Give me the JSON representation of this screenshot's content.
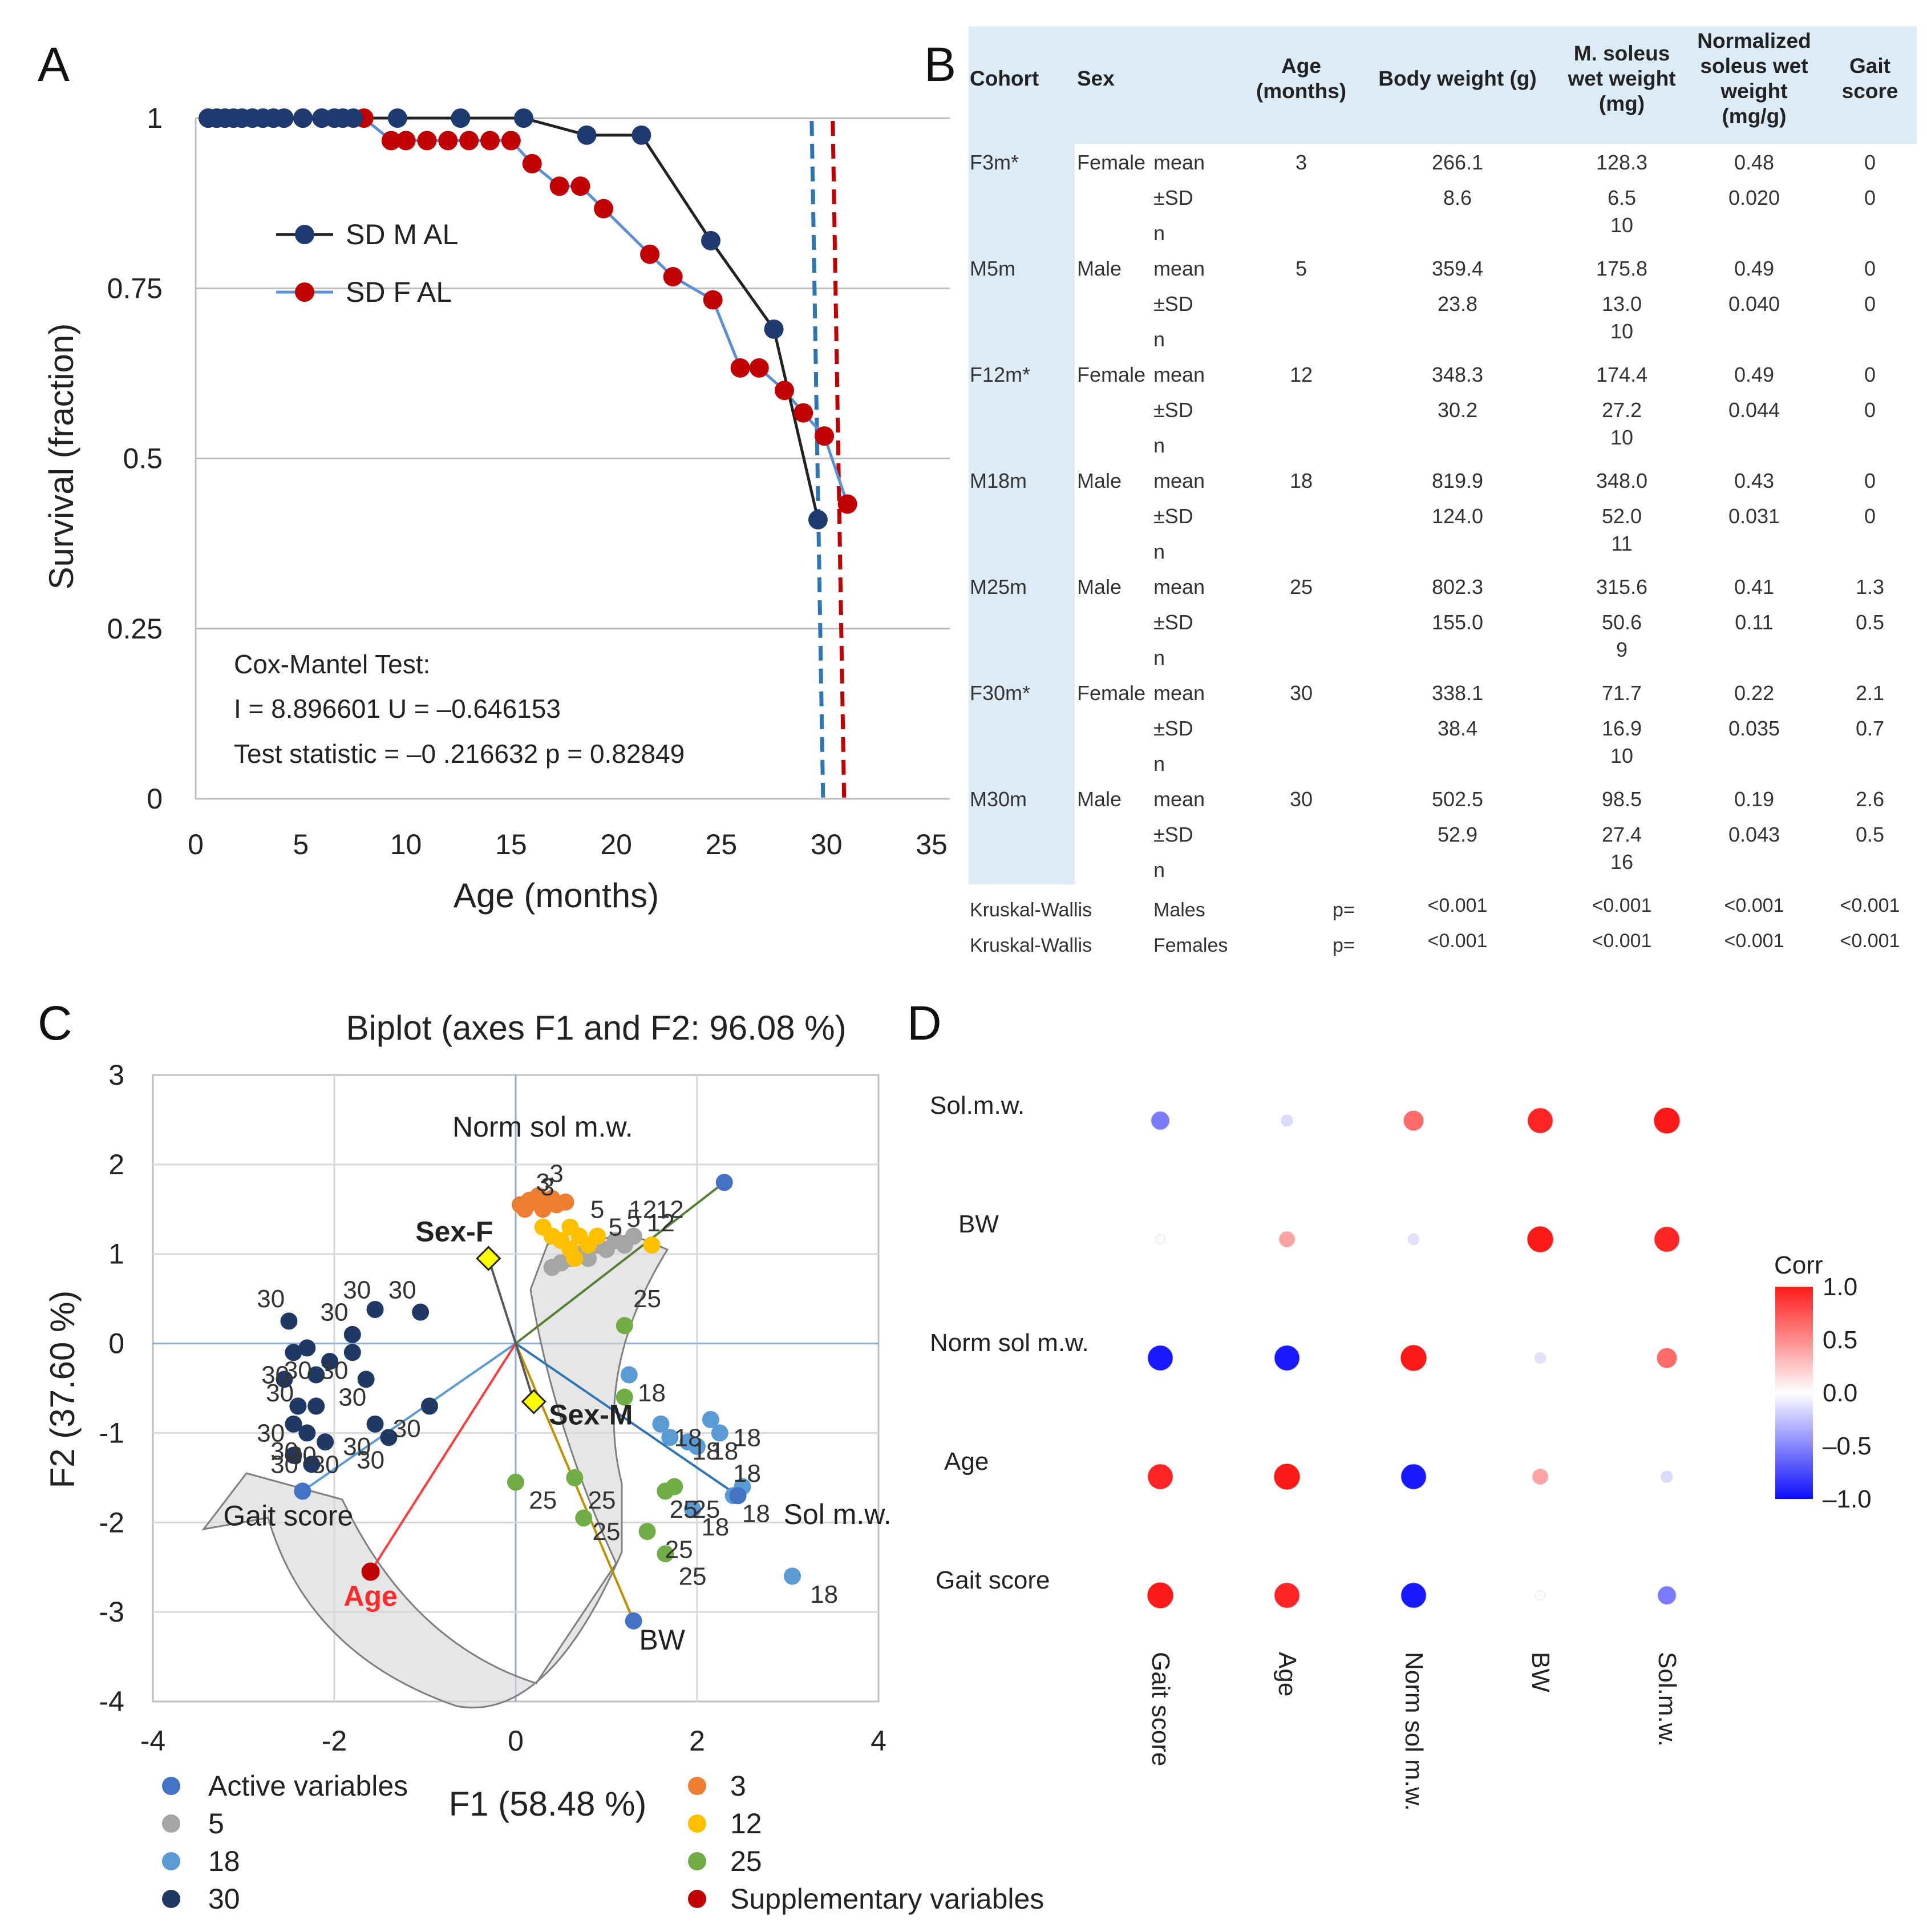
{
  "panel_labels": {
    "a": "A",
    "b": "B",
    "c": "C",
    "d": "D"
  },
  "chart_data": [
    {
      "panel": "A",
      "type": "line",
      "xlabel": "Age (months)",
      "ylabel": "Survival (fraction)",
      "xlim": [
        0,
        35
      ],
      "ylim": [
        0,
        1
      ],
      "xticks": [
        0,
        5,
        10,
        15,
        20,
        25,
        30,
        35
      ],
      "yticks": [
        0,
        0.25,
        0.5,
        0.75,
        1
      ],
      "ytick_labels": [
        "0",
        "0.25",
        "0.5",
        "0.75",
        "1"
      ],
      "series": [
        {
          "name": "SD M AL",
          "color": "#1f3a6e",
          "line_color": "#222222",
          "x": [
            0.6,
            1.0,
            1.4,
            1.8,
            2.2,
            2.7,
            3.2,
            3.7,
            4.2,
            5.1,
            6.0,
            6.6,
            7.0,
            7.5,
            9.6,
            12.6,
            15.6,
            18.6,
            21.2,
            24.5,
            27.5,
            29.6
          ],
          "y": [
            1,
            1,
            1,
            1,
            1,
            1,
            1,
            1,
            1,
            1,
            1,
            1,
            1,
            1,
            1,
            1,
            1,
            0.975,
            0.975,
            0.82,
            0.69,
            0.41
          ]
        },
        {
          "name": "SD F AL",
          "color": "#c00000",
          "line_color": "#5b8fd6",
          "x": [
            0.6,
            1.0,
            1.4,
            1.8,
            2.2,
            2.7,
            3.2,
            3.7,
            4.2,
            5.1,
            6.0,
            6.6,
            7.0,
            8.0,
            9.3,
            10.0,
            11.0,
            12.0,
            13.0,
            14.0,
            15.0,
            16.0,
            17.3,
            18.3,
            19.4,
            21.6,
            22.7,
            24.6,
            25.9,
            26.8,
            28.0,
            28.9,
            29.9,
            31.0
          ],
          "y": [
            1,
            1,
            1,
            1,
            1,
            1,
            1,
            1,
            1,
            1,
            1,
            1,
            1,
            1,
            0.967,
            0.967,
            0.967,
            0.967,
            0.967,
            0.967,
            0.967,
            0.933,
            0.9,
            0.9,
            0.867,
            0.8,
            0.767,
            0.733,
            0.633,
            0.633,
            0.6,
            0.567,
            0.533,
            0.433
          ]
        }
      ],
      "median_lines": [
        {
          "x": 29.3,
          "color": "#2e75b6"
        },
        {
          "x": 30.3,
          "color": "#c00000"
        }
      ],
      "annotation": [
        "Cox-Mantel Test:",
        "I = 8.896601 U = –0.646153",
        "Test statistic =  –0 .216632 p = 0.82849"
      ]
    },
    {
      "panel": "B",
      "type": "table",
      "headers": [
        "Cohort",
        "Sex",
        "Age (months)",
        "Body weight (g)",
        "M. soleus wet weight (mg)",
        "Normalized soleus wet weight (mg/g)",
        "Gait score"
      ],
      "header_lines": [
        [
          "Cohort"
        ],
        [
          "Sex"
        ],
        [
          "Age",
          "(months)"
        ],
        [
          "Body weight (g)"
        ],
        [
          "M. soleus",
          "wet weight",
          "(mg)"
        ],
        [
          "Normalized",
          "soleus wet",
          "weight",
          "(mg/g)"
        ],
        [
          "Gait",
          "score"
        ]
      ],
      "cohorts": [
        {
          "cohort": "F3m*",
          "sex": "Female",
          "age": "3",
          "mean": [
            "266.1",
            "128.3",
            "0.48",
            "0"
          ],
          "sd": [
            "8.6",
            "6.5",
            "0.020",
            "0"
          ],
          "n": "10"
        },
        {
          "cohort": "M5m",
          "sex": "Male",
          "age": "5",
          "mean": [
            "359.4",
            "175.8",
            "0.49",
            "0"
          ],
          "sd": [
            "23.8",
            "13.0",
            "0.040",
            "0"
          ],
          "n": "10"
        },
        {
          "cohort": "F12m*",
          "sex": "Female",
          "age": "12",
          "mean": [
            "348.3",
            "174.4",
            "0.49",
            "0"
          ],
          "sd": [
            "30.2",
            "27.2",
            "0.044",
            "0"
          ],
          "n": "10"
        },
        {
          "cohort": "M18m",
          "sex": "Male",
          "age": "18",
          "mean": [
            "819.9",
            "348.0",
            "0.43",
            "0"
          ],
          "sd": [
            "124.0",
            "52.0",
            "0.031",
            "0"
          ],
          "n": "11"
        },
        {
          "cohort": "M25m",
          "sex": "Male",
          "age": "25",
          "mean": [
            "802.3",
            "315.6",
            "0.41",
            "1.3"
          ],
          "sd": [
            "155.0",
            "50.6",
            "0.11",
            "0.5"
          ],
          "n": "9"
        },
        {
          "cohort": "F30m*",
          "sex": "Female",
          "age": "30",
          "mean": [
            "338.1",
            "71.7",
            "0.22",
            "2.1"
          ],
          "sd": [
            "38.4",
            "16.9",
            "0.035",
            "0.7"
          ],
          "n": "10"
        },
        {
          "cohort": "M30m",
          "sex": "Male",
          "age": "30",
          "mean": [
            "502.5",
            "98.5",
            "0.19",
            "2.6"
          ],
          "sd": [
            "52.9",
            "27.4",
            "0.043",
            "0.5"
          ],
          "n": "16"
        }
      ],
      "stat_labels": {
        "mean": "mean",
        "sd": "±SD",
        "n": "n"
      },
      "kruskal": [
        {
          "test": "Kruskal-Wallis",
          "group": "Males",
          "p": "p=",
          "values": [
            "<0.001",
            "<0.001",
            "<0.001",
            "<0.001"
          ]
        },
        {
          "test": "Kruskal-Wallis",
          "group": "Females",
          "p": "p=",
          "values": [
            "<0.001",
            "<0.001",
            "<0.001",
            "<0.001"
          ]
        }
      ]
    },
    {
      "panel": "C",
      "type": "scatter",
      "title": "Biplot (axes F1 and F2: 96.08 %)",
      "xlabel": "F1 (58.48 %)",
      "ylabel": "F2 (37.60 %)",
      "xlim": [
        -4,
        4
      ],
      "ylim": [
        -4,
        3
      ],
      "xticks": [
        -4,
        -2,
        0,
        2,
        4
      ],
      "yticks": [
        -4,
        -3,
        -2,
        -1,
        0,
        1,
        2,
        3
      ],
      "groups": [
        {
          "name": "3",
          "color": "#ed7d31",
          "label": "3",
          "points": [
            [
              0.05,
              1.55
            ],
            [
              0.15,
              1.6
            ],
            [
              0.25,
              1.65
            ],
            [
              0.35,
              1.6
            ],
            [
              0.45,
              1.55
            ],
            [
              0.3,
              1.5
            ],
            [
              0.2,
              1.58
            ],
            [
              0.4,
              1.62
            ],
            [
              0.55,
              1.58
            ],
            [
              0.1,
              1.5
            ]
          ],
          "label_points": [
            [
              0.3,
              1.8
            ],
            [
              0.45,
              1.9
            ],
            [
              0.35,
              1.75
            ]
          ]
        },
        {
          "name": "5",
          "color": "#a5a5a5",
          "label": "5",
          "points": [
            [
              0.4,
              0.85
            ],
            [
              0.5,
              0.9
            ],
            [
              0.6,
              0.95
            ],
            [
              0.7,
              1.0
            ],
            [
              0.9,
              1.1
            ],
            [
              1.0,
              1.05
            ],
            [
              1.1,
              1.15
            ],
            [
              1.3,
              1.2
            ],
            [
              0.8,
              0.95
            ],
            [
              1.2,
              1.1
            ]
          ],
          "label_points": [
            [
              0.9,
              1.5
            ],
            [
              1.1,
              1.3
            ],
            [
              1.3,
              1.4
            ]
          ]
        },
        {
          "name": "12",
          "color": "#ffc000",
          "label": "12",
          "points": [
            [
              0.3,
              1.3
            ],
            [
              0.4,
              1.2
            ],
            [
              0.5,
              1.15
            ],
            [
              0.6,
              1.3
            ],
            [
              0.7,
              1.2
            ],
            [
              0.8,
              1.1
            ],
            [
              0.6,
              1.05
            ],
            [
              0.9,
              1.2
            ],
            [
              1.5,
              1.1
            ],
            [
              0.65,
              0.95
            ]
          ],
          "label_points": [
            [
              1.4,
              1.5
            ],
            [
              1.6,
              1.35
            ],
            [
              1.7,
              1.5
            ]
          ]
        },
        {
          "name": "18",
          "color": "#5b9bd5",
          "label": "18",
          "points": [
            [
              1.25,
              -0.35
            ],
            [
              1.6,
              -0.9
            ],
            [
              1.7,
              -1.05
            ],
            [
              1.9,
              -1.1
            ],
            [
              2.0,
              -1.15
            ],
            [
              2.15,
              -0.85
            ],
            [
              2.25,
              -1.0
            ],
            [
              2.4,
              -1.7
            ],
            [
              2.5,
              -1.6
            ],
            [
              3.05,
              -2.6
            ],
            [
              1.95,
              -1.85
            ]
          ],
          "label_points": [
            [
              1.5,
              -0.55
            ],
            [
              1.9,
              -1.05
            ],
            [
              2.1,
              -1.2
            ],
            [
              2.3,
              -1.2
            ],
            [
              2.55,
              -1.05
            ],
            [
              2.55,
              -1.45
            ],
            [
              2.65,
              -1.9
            ],
            [
              2.2,
              -2.05
            ],
            [
              3.4,
              -2.8
            ]
          ]
        },
        {
          "name": "25",
          "color": "#70ad47",
          "label": "25",
          "points": [
            [
              1.2,
              0.2
            ],
            [
              0.0,
              -1.55
            ],
            [
              0.65,
              -1.5
            ],
            [
              0.75,
              -1.95
            ],
            [
              1.45,
              -2.1
            ],
            [
              1.65,
              -1.65
            ],
            [
              1.75,
              -1.6
            ],
            [
              1.65,
              -2.35
            ],
            [
              1.2,
              -0.6
            ]
          ],
          "label_points": [
            [
              1.45,
              0.5
            ],
            [
              0.3,
              -1.75
            ],
            [
              0.95,
              -1.75
            ],
            [
              1.0,
              -2.1
            ],
            [
              1.85,
              -1.85
            ],
            [
              2.1,
              -1.85
            ],
            [
              1.8,
              -2.3
            ],
            [
              1.95,
              -2.6
            ]
          ]
        },
        {
          "name": "30",
          "color": "#1f3864",
          "label": "30",
          "points": [
            [
              -2.5,
              0.25
            ],
            [
              -1.55,
              0.38
            ],
            [
              -1.05,
              0.35
            ],
            [
              -1.8,
              0.1
            ],
            [
              -2.3,
              -0.05
            ],
            [
              -2.05,
              -0.2
            ],
            [
              -1.8,
              -0.1
            ],
            [
              -2.2,
              -0.35
            ],
            [
              -2.45,
              -0.1
            ],
            [
              -2.55,
              -0.4
            ],
            [
              -1.65,
              -0.4
            ],
            [
              -2.4,
              -0.7
            ],
            [
              -2.2,
              -0.7
            ],
            [
              -2.45,
              -0.9
            ],
            [
              -2.3,
              -1.0
            ],
            [
              -2.1,
              -1.1
            ],
            [
              -1.55,
              -0.9
            ],
            [
              -1.4,
              -1.05
            ],
            [
              -0.95,
              -0.7
            ],
            [
              -2.45,
              -1.25
            ],
            [
              -2.25,
              -1.35
            ]
          ],
          "label_points": [
            [
              -2.7,
              0.5
            ],
            [
              -2.0,
              0.35
            ],
            [
              -1.75,
              0.6
            ],
            [
              -1.25,
              0.6
            ],
            [
              -2.65,
              -0.35
            ],
            [
              -2.4,
              -0.3
            ],
            [
              -2.0,
              -0.3
            ],
            [
              -1.8,
              -0.6
            ],
            [
              -2.6,
              -0.55
            ],
            [
              -2.7,
              -1.0
            ],
            [
              -2.55,
              -1.2
            ],
            [
              -2.55,
              -1.35
            ],
            [
              -2.35,
              -1.25
            ],
            [
              -1.75,
              -1.15
            ],
            [
              -1.6,
              -1.3
            ],
            [
              -1.2,
              -0.95
            ],
            [
              -2.1,
              -1.35
            ]
          ]
        }
      ],
      "active_variables": [
        {
          "name": "Norm sol m.w.",
          "x": 2.3,
          "y": 1.8,
          "color": "#4472c4",
          "line_color": "#548235",
          "label": "Norm sol m.w."
        },
        {
          "name": "Sol m.w.",
          "x": 2.45,
          "y": -1.7,
          "color": "#4472c4",
          "line_color": "#2e75b6",
          "label": "Sol m.w."
        },
        {
          "name": "BW",
          "x": 1.3,
          "y": -3.1,
          "color": "#4472c4",
          "line_color": "#bf9000",
          "label": "BW"
        },
        {
          "name": "Gait score",
          "x": -2.35,
          "y": -1.65,
          "color": "#4472c4",
          "line_color": "#5b9bd5",
          "label": "Gait score"
        }
      ],
      "supplementary_variables": [
        {
          "name": "Age",
          "x": -1.6,
          "y": -2.55,
          "color": "#c00000",
          "line_color": "#ff3b3b",
          "label": "Age"
        },
        {
          "name": "Sex-F",
          "x": -0.3,
          "y": 0.95,
          "color": "#ffff00",
          "line_color": "#595959",
          "label": "Sex-F"
        },
        {
          "name": "Sex-M",
          "x": 0.2,
          "y": -0.65,
          "color": "#ffff00",
          "line_color": "#595959",
          "label": "Sex-M"
        }
      ],
      "legend": [
        {
          "label": "Active variables",
          "color": "#4472c4"
        },
        {
          "label": "5",
          "color": "#a5a5a5"
        },
        {
          "label": "18",
          "color": "#5b9bd5"
        },
        {
          "label": "30",
          "color": "#1f3864"
        },
        {
          "label": "3",
          "color": "#ed7d31"
        },
        {
          "label": "12",
          "color": "#ffc000"
        },
        {
          "label": "25",
          "color": "#70ad47"
        },
        {
          "label": "Supplementary variables",
          "color": "#c00000"
        }
      ]
    },
    {
      "panel": "D",
      "type": "heatmap",
      "rows": [
        "Sol.m.w.",
        "BW",
        "Norm sol m.w.",
        "Age",
        "Gait score"
      ],
      "cols": [
        "Gait score",
        "Age",
        "Norm sol m.w.",
        "BW",
        "Sol.m.w."
      ],
      "values": [
        [
          -0.55,
          -0.15,
          0.65,
          0.95,
          1.0
        ],
        [
          0.02,
          0.4,
          -0.12,
          1.0,
          0.95
        ],
        [
          -0.95,
          -0.95,
          1.0,
          -0.12,
          0.65
        ],
        [
          0.95,
          1.0,
          -0.95,
          0.4,
          -0.15
        ],
        [
          1.0,
          0.95,
          -0.95,
          0.02,
          -0.55
        ]
      ],
      "legend_title": "Corr",
      "legend_ticks": [
        "1.0",
        "0.5",
        "0.0",
        "–0.5",
        "–1.0"
      ],
      "legend_tick_values": [
        1.0,
        0.5,
        0.0,
        -0.5,
        -1.0
      ],
      "colors": {
        "positive": "#ff1a1a",
        "negative": "#0d0dff",
        "neutral": "#ffffff"
      }
    }
  ]
}
